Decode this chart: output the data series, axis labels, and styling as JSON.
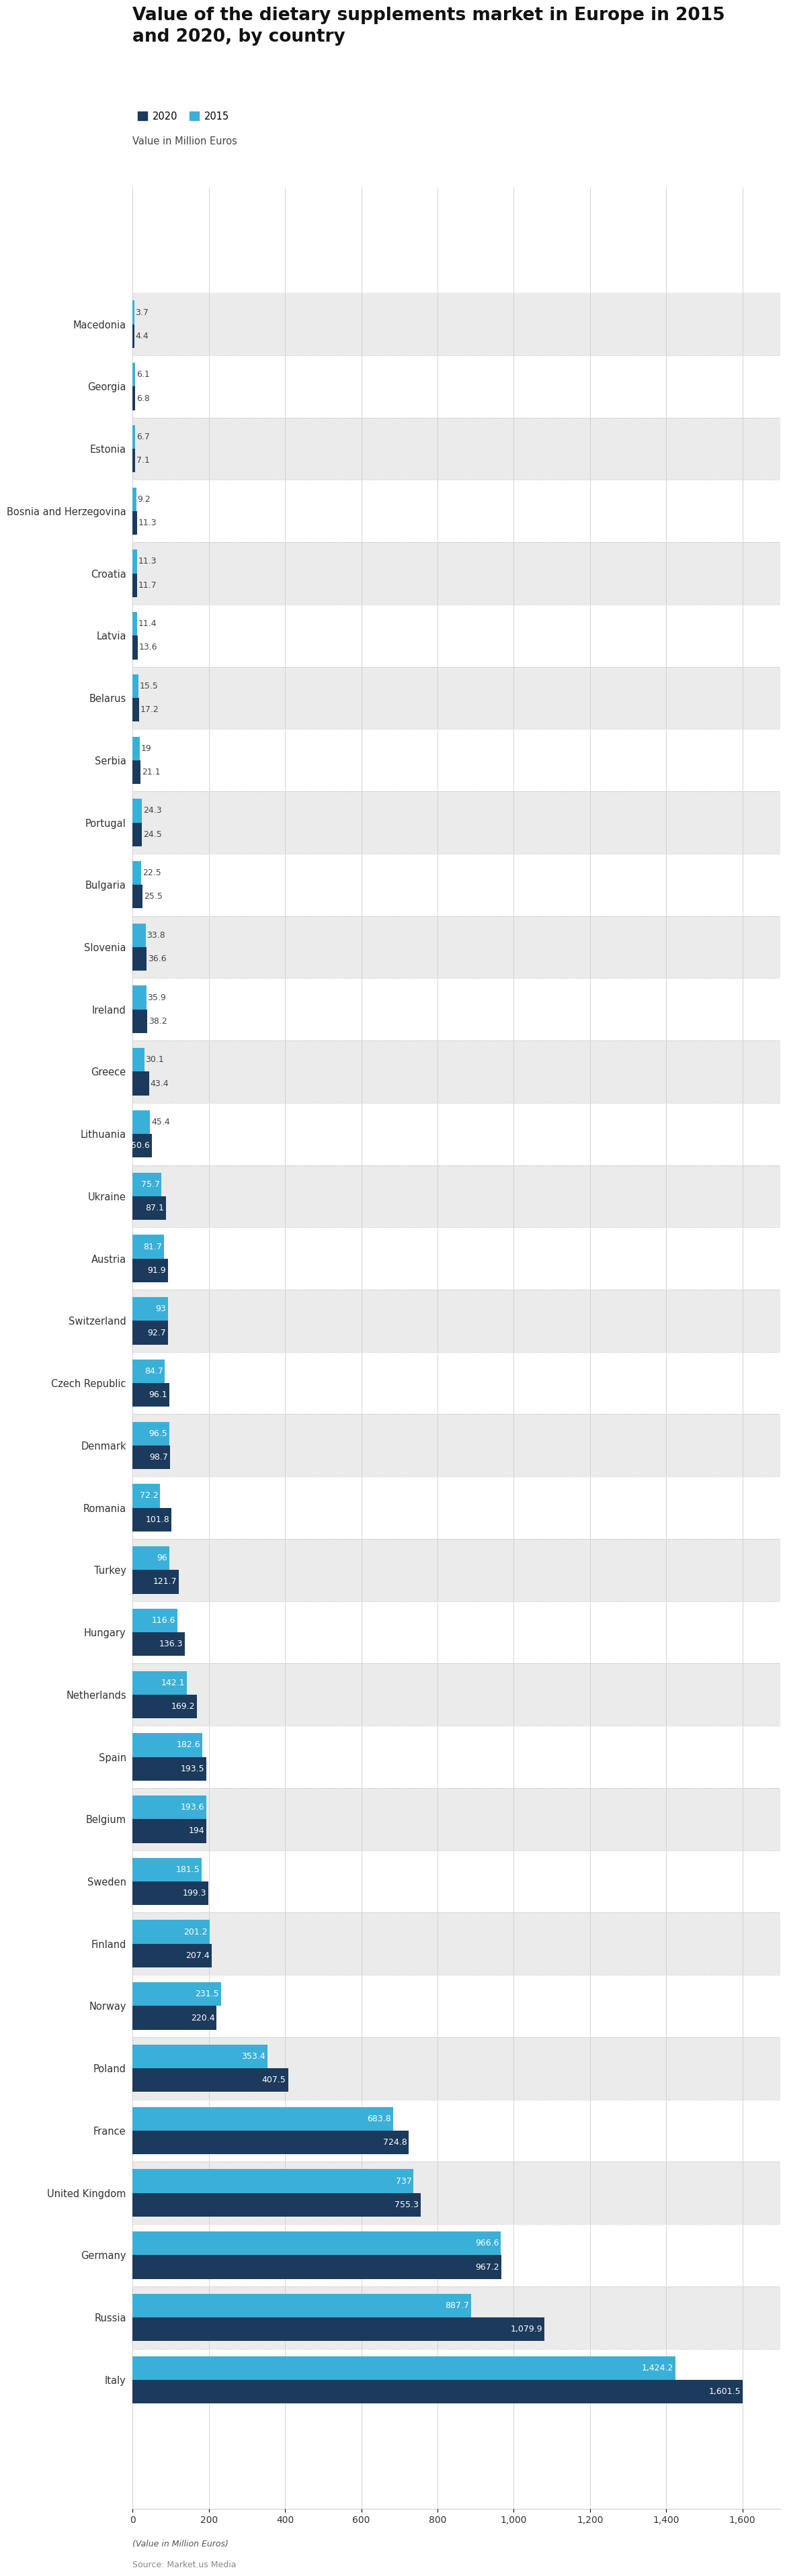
{
  "title": "Value of the dietary supplements market in Europe in 2015\nand 2020, by country",
  "subtitle": "Value in Million Euros",
  "footer1": "(Value in Million Euros)",
  "footer2": "Source: Market.us Media",
  "color_2020": "#1b3a5c",
  "color_2015": "#3ab0d8",
  "background_color": "#ffffff",
  "stripe_color": "#ebebeb",
  "xlim": [
    0,
    1700
  ],
  "xticks": [
    0,
    200,
    400,
    600,
    800,
    1000,
    1200,
    1400,
    1600
  ],
  "countries": [
    "Macedonia",
    "Georgia",
    "Estonia",
    "Bosnia and Herzegovina",
    "Croatia",
    "Latvia",
    "Belarus",
    "Serbia",
    "Portugal",
    "Bulgaria",
    "Slovenia",
    "Ireland",
    "Greece",
    "Lithuania",
    "Ukraine",
    "Austria",
    "Switzerland",
    "Czech Republic",
    "Denmark",
    "Romania",
    "Turkey",
    "Hungary",
    "Netherlands",
    "Spain",
    "Belgium",
    "Sweden",
    "Finland",
    "Norway",
    "Poland",
    "France",
    "United Kingdom",
    "Germany",
    "Russia",
    "Italy"
  ],
  "values_2020": [
    4.4,
    6.8,
    7.1,
    11.3,
    11.7,
    13.6,
    17.2,
    21.1,
    24.5,
    25.5,
    36.6,
    38.2,
    43.4,
    50.6,
    87.1,
    91.9,
    92.7,
    96.1,
    98.7,
    101.8,
    121.7,
    136.3,
    169.2,
    193.5,
    194.0,
    199.3,
    207.4,
    220.4,
    407.5,
    724.8,
    755.3,
    967.2,
    1079.9,
    1601.5
  ],
  "values_2015": [
    3.7,
    6.1,
    6.7,
    9.2,
    11.3,
    11.4,
    15.5,
    19.0,
    24.3,
    22.5,
    33.8,
    35.9,
    30.1,
    45.4,
    75.7,
    81.7,
    93.0,
    84.7,
    96.5,
    72.2,
    96.0,
    116.6,
    142.1,
    182.6,
    193.6,
    181.5,
    201.2,
    231.5,
    353.4,
    683.8,
    737.0,
    966.6,
    887.7,
    1424.2
  ],
  "label_2020": "2020",
  "label_2015": "2015",
  "bar_height": 0.38,
  "label_threshold": 50,
  "inside_label_color": "#ffffff",
  "outside_label_color": "#444444",
  "label_fontsize": 9.0
}
